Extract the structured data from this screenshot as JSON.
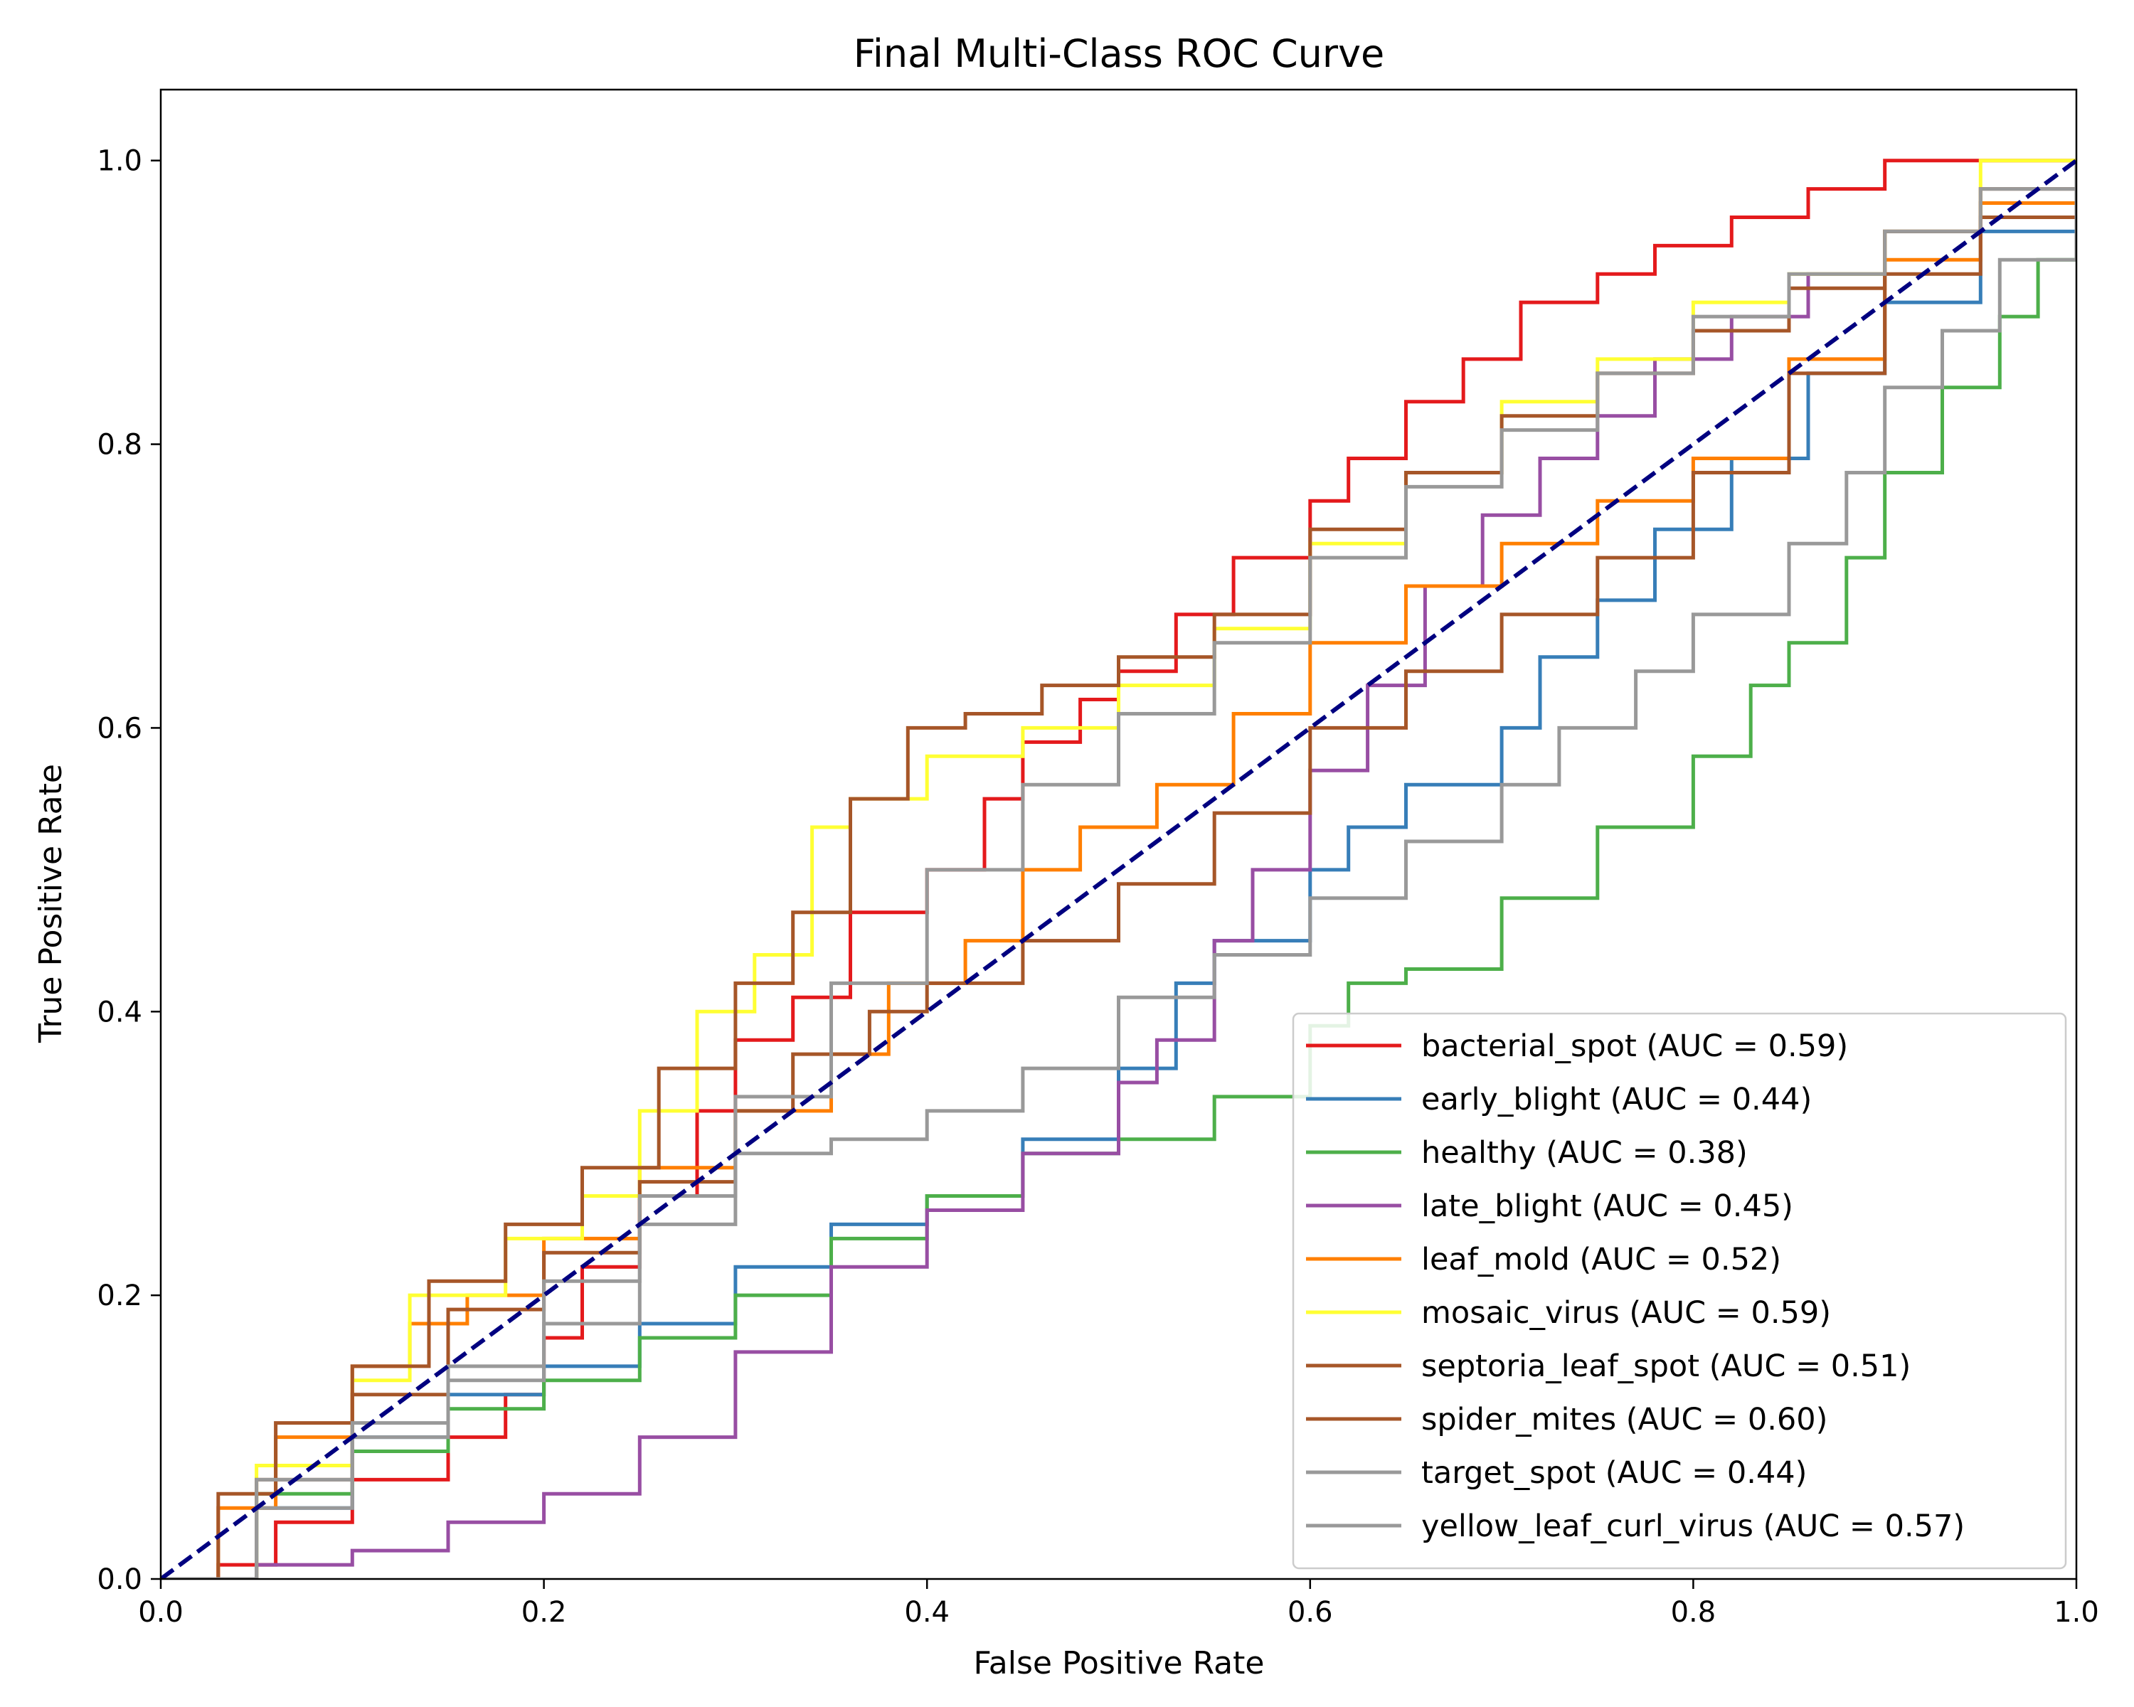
{
  "chart_data": {
    "type": "line",
    "title": "Final Multi-Class ROC Curve",
    "xlabel": "False Positive Rate",
    "ylabel": "True Positive Rate",
    "xlim": [
      0.0,
      1.0
    ],
    "ylim": [
      0.0,
      1.05
    ],
    "xticks": [
      "0.0",
      "0.2",
      "0.4",
      "0.6",
      "0.8",
      "1.0"
    ],
    "yticks": [
      "0.0",
      "0.2",
      "0.4",
      "0.6",
      "0.8",
      "1.0"
    ],
    "grid": false,
    "legend_position": "lower right",
    "diagonal": {
      "color": "#000080",
      "style": "dashed",
      "points": [
        [
          0,
          0
        ],
        [
          1,
          1
        ]
      ]
    },
    "series": [
      {
        "name": "bacterial_spot (AUC = 0.59)",
        "color": "#e41a1c",
        "points": [
          [
            0,
            0
          ],
          [
            0.03,
            0.01
          ],
          [
            0.06,
            0.04
          ],
          [
            0.1,
            0.07
          ],
          [
            0.15,
            0.1
          ],
          [
            0.18,
            0.13
          ],
          [
            0.2,
            0.17
          ],
          [
            0.22,
            0.22
          ],
          [
            0.25,
            0.27
          ],
          [
            0.28,
            0.33
          ],
          [
            0.3,
            0.38
          ],
          [
            0.33,
            0.41
          ],
          [
            0.36,
            0.47
          ],
          [
            0.4,
            0.5
          ],
          [
            0.43,
            0.55
          ],
          [
            0.45,
            0.59
          ],
          [
            0.48,
            0.62
          ],
          [
            0.5,
            0.64
          ],
          [
            0.53,
            0.68
          ],
          [
            0.56,
            0.72
          ],
          [
            0.6,
            0.76
          ],
          [
            0.62,
            0.79
          ],
          [
            0.65,
            0.83
          ],
          [
            0.68,
            0.86
          ],
          [
            0.71,
            0.9
          ],
          [
            0.75,
            0.92
          ],
          [
            0.78,
            0.94
          ],
          [
            0.82,
            0.96
          ],
          [
            0.86,
            0.98
          ],
          [
            0.9,
            1.0
          ],
          [
            1,
            1.0
          ]
        ]
      },
      {
        "name": "early_blight (AUC = 0.44)",
        "color": "#377eb8",
        "points": [
          [
            0,
            0
          ],
          [
            0.05,
            0.05
          ],
          [
            0.1,
            0.1
          ],
          [
            0.15,
            0.13
          ],
          [
            0.2,
            0.15
          ],
          [
            0.25,
            0.18
          ],
          [
            0.3,
            0.22
          ],
          [
            0.35,
            0.25
          ],
          [
            0.4,
            0.27
          ],
          [
            0.45,
            0.31
          ],
          [
            0.5,
            0.36
          ],
          [
            0.53,
            0.42
          ],
          [
            0.55,
            0.45
          ],
          [
            0.6,
            0.5
          ],
          [
            0.62,
            0.53
          ],
          [
            0.65,
            0.56
          ],
          [
            0.7,
            0.6
          ],
          [
            0.72,
            0.65
          ],
          [
            0.75,
            0.69
          ],
          [
            0.78,
            0.74
          ],
          [
            0.82,
            0.79
          ],
          [
            0.86,
            0.85
          ],
          [
            0.9,
            0.9
          ],
          [
            0.95,
            0.95
          ],
          [
            1,
            1.0
          ]
        ]
      },
      {
        "name": "healthy (AUC = 0.38)",
        "color": "#4daf4a",
        "points": [
          [
            0,
            0
          ],
          [
            0.05,
            0.06
          ],
          [
            0.1,
            0.09
          ],
          [
            0.15,
            0.12
          ],
          [
            0.2,
            0.14
          ],
          [
            0.25,
            0.17
          ],
          [
            0.3,
            0.2
          ],
          [
            0.35,
            0.24
          ],
          [
            0.4,
            0.27
          ],
          [
            0.45,
            0.3
          ],
          [
            0.5,
            0.31
          ],
          [
            0.55,
            0.34
          ],
          [
            0.6,
            0.39
          ],
          [
            0.62,
            0.42
          ],
          [
            0.65,
            0.43
          ],
          [
            0.7,
            0.48
          ],
          [
            0.75,
            0.53
          ],
          [
            0.8,
            0.58
          ],
          [
            0.83,
            0.63
          ],
          [
            0.85,
            0.66
          ],
          [
            0.88,
            0.72
          ],
          [
            0.9,
            0.78
          ],
          [
            0.93,
            0.84
          ],
          [
            0.96,
            0.89
          ],
          [
            0.98,
            0.93
          ],
          [
            1,
            1.0
          ]
        ]
      },
      {
        "name": "late_blight (AUC = 0.45)",
        "color": "#984ea3",
        "points": [
          [
            0,
            0
          ],
          [
            0.05,
            0.01
          ],
          [
            0.1,
            0.02
          ],
          [
            0.15,
            0.04
          ],
          [
            0.2,
            0.06
          ],
          [
            0.25,
            0.1
          ],
          [
            0.3,
            0.16
          ],
          [
            0.35,
            0.22
          ],
          [
            0.4,
            0.26
          ],
          [
            0.45,
            0.3
          ],
          [
            0.5,
            0.35
          ],
          [
            0.52,
            0.38
          ],
          [
            0.55,
            0.45
          ],
          [
            0.57,
            0.5
          ],
          [
            0.6,
            0.57
          ],
          [
            0.63,
            0.63
          ],
          [
            0.66,
            0.7
          ],
          [
            0.69,
            0.75
          ],
          [
            0.72,
            0.79
          ],
          [
            0.75,
            0.82
          ],
          [
            0.78,
            0.86
          ],
          [
            0.82,
            0.89
          ],
          [
            0.86,
            0.92
          ],
          [
            0.9,
            0.95
          ],
          [
            0.95,
            0.97
          ],
          [
            1,
            1.0
          ]
        ]
      },
      {
        "name": "leaf_mold (AUC = 0.52)",
        "color": "#ff7f00",
        "points": [
          [
            0,
            0
          ],
          [
            0.03,
            0.05
          ],
          [
            0.06,
            0.1
          ],
          [
            0.1,
            0.15
          ],
          [
            0.13,
            0.18
          ],
          [
            0.16,
            0.2
          ],
          [
            0.2,
            0.24
          ],
          [
            0.25,
            0.29
          ],
          [
            0.3,
            0.33
          ],
          [
            0.35,
            0.37
          ],
          [
            0.38,
            0.42
          ],
          [
            0.42,
            0.45
          ],
          [
            0.45,
            0.5
          ],
          [
            0.48,
            0.53
          ],
          [
            0.52,
            0.56
          ],
          [
            0.56,
            0.61
          ],
          [
            0.6,
            0.66
          ],
          [
            0.65,
            0.7
          ],
          [
            0.7,
            0.73
          ],
          [
            0.75,
            0.76
          ],
          [
            0.8,
            0.79
          ],
          [
            0.85,
            0.86
          ],
          [
            0.9,
            0.93
          ],
          [
            0.95,
            0.97
          ],
          [
            1,
            1.0
          ]
        ]
      },
      {
        "name": "mosaic_virus (AUC = 0.59)",
        "color": "#ffff33",
        "points": [
          [
            0,
            0
          ],
          [
            0.05,
            0.08
          ],
          [
            0.1,
            0.14
          ],
          [
            0.13,
            0.2
          ],
          [
            0.18,
            0.24
          ],
          [
            0.22,
            0.27
          ],
          [
            0.25,
            0.33
          ],
          [
            0.28,
            0.4
          ],
          [
            0.31,
            0.44
          ],
          [
            0.34,
            0.53
          ],
          [
            0.36,
            0.55
          ],
          [
            0.4,
            0.58
          ],
          [
            0.45,
            0.6
          ],
          [
            0.5,
            0.63
          ],
          [
            0.55,
            0.67
          ],
          [
            0.6,
            0.73
          ],
          [
            0.65,
            0.78
          ],
          [
            0.7,
            0.83
          ],
          [
            0.75,
            0.86
          ],
          [
            0.8,
            0.9
          ],
          [
            0.85,
            0.92
          ],
          [
            0.9,
            0.95
          ],
          [
            0.95,
            1.0
          ],
          [
            1,
            1.0
          ]
        ]
      },
      {
        "name": "septoria_leaf_spot (AUC = 0.51)",
        "color": "#a65628",
        "points": [
          [
            0,
            0
          ],
          [
            0.05,
            0.07
          ],
          [
            0.1,
            0.13
          ],
          [
            0.15,
            0.19
          ],
          [
            0.2,
            0.23
          ],
          [
            0.25,
            0.28
          ],
          [
            0.3,
            0.33
          ],
          [
            0.33,
            0.37
          ],
          [
            0.37,
            0.4
          ],
          [
            0.4,
            0.42
          ],
          [
            0.45,
            0.45
          ],
          [
            0.5,
            0.49
          ],
          [
            0.55,
            0.54
          ],
          [
            0.6,
            0.6
          ],
          [
            0.65,
            0.64
          ],
          [
            0.7,
            0.68
          ],
          [
            0.75,
            0.72
          ],
          [
            0.8,
            0.78
          ],
          [
            0.85,
            0.85
          ],
          [
            0.9,
            0.92
          ],
          [
            0.95,
            0.96
          ],
          [
            1,
            1.0
          ]
        ]
      },
      {
        "name": "spider_mites (AUC = 0.60)",
        "color": "#a65628",
        "points": [
          [
            0,
            0
          ],
          [
            0.03,
            0.06
          ],
          [
            0.06,
            0.11
          ],
          [
            0.1,
            0.15
          ],
          [
            0.14,
            0.21
          ],
          [
            0.18,
            0.25
          ],
          [
            0.22,
            0.29
          ],
          [
            0.26,
            0.36
          ],
          [
            0.3,
            0.42
          ],
          [
            0.33,
            0.47
          ],
          [
            0.36,
            0.55
          ],
          [
            0.39,
            0.6
          ],
          [
            0.42,
            0.61
          ],
          [
            0.46,
            0.63
          ],
          [
            0.5,
            0.65
          ],
          [
            0.55,
            0.68
          ],
          [
            0.6,
            0.74
          ],
          [
            0.65,
            0.78
          ],
          [
            0.7,
            0.82
          ],
          [
            0.75,
            0.85
          ],
          [
            0.8,
            0.88
          ],
          [
            0.85,
            0.91
          ],
          [
            0.9,
            0.95
          ],
          [
            0.95,
            0.98
          ],
          [
            1,
            1.0
          ]
        ]
      },
      {
        "name": "target_spot (AUC = 0.44)",
        "color": "#999999",
        "points": [
          [
            0,
            0
          ],
          [
            0.05,
            0.05
          ],
          [
            0.1,
            0.1
          ],
          [
            0.15,
            0.14
          ],
          [
            0.2,
            0.18
          ],
          [
            0.25,
            0.25
          ],
          [
            0.3,
            0.3
          ],
          [
            0.35,
            0.31
          ],
          [
            0.4,
            0.33
          ],
          [
            0.45,
            0.36
          ],
          [
            0.5,
            0.41
          ],
          [
            0.55,
            0.44
          ],
          [
            0.6,
            0.48
          ],
          [
            0.65,
            0.52
          ],
          [
            0.7,
            0.56
          ],
          [
            0.73,
            0.6
          ],
          [
            0.77,
            0.64
          ],
          [
            0.8,
            0.68
          ],
          [
            0.85,
            0.73
          ],
          [
            0.88,
            0.78
          ],
          [
            0.9,
            0.84
          ],
          [
            0.93,
            0.88
          ],
          [
            0.96,
            0.93
          ],
          [
            1,
            1.0
          ]
        ]
      },
      {
        "name": "yellow_leaf_curl_virus (AUC = 0.57)",
        "color": "#999999",
        "points": [
          [
            0,
            0
          ],
          [
            0.05,
            0.07
          ],
          [
            0.1,
            0.11
          ],
          [
            0.15,
            0.15
          ],
          [
            0.2,
            0.21
          ],
          [
            0.25,
            0.27
          ],
          [
            0.3,
            0.34
          ],
          [
            0.35,
            0.42
          ],
          [
            0.4,
            0.5
          ],
          [
            0.45,
            0.56
          ],
          [
            0.5,
            0.61
          ],
          [
            0.55,
            0.66
          ],
          [
            0.6,
            0.72
          ],
          [
            0.65,
            0.77
          ],
          [
            0.7,
            0.81
          ],
          [
            0.75,
            0.85
          ],
          [
            0.8,
            0.89
          ],
          [
            0.85,
            0.92
          ],
          [
            0.9,
            0.95
          ],
          [
            0.95,
            0.98
          ],
          [
            1,
            1.0
          ]
        ]
      }
    ]
  }
}
